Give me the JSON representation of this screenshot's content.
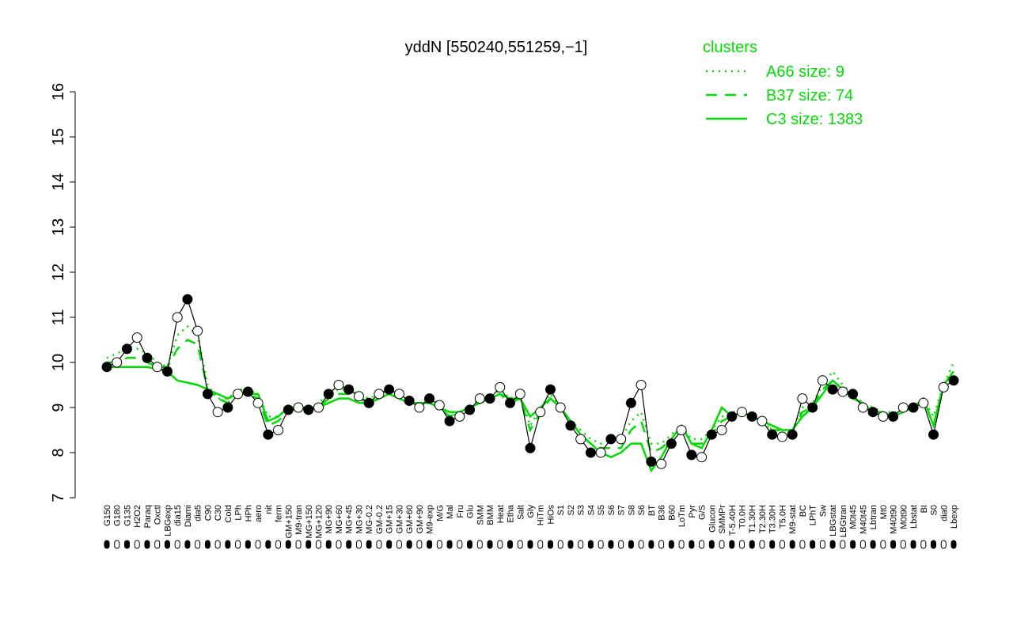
{
  "chart_data": {
    "type": "line",
    "title": "yddN [550240,551259,−1]",
    "legend_title": "clusters",
    "legend_color": "#00dd00",
    "legend_position": "top-right",
    "ylim": [
      7,
      16
    ],
    "yticks": [
      7,
      8,
      9,
      10,
      11,
      12,
      13,
      14,
      15,
      16
    ],
    "categories": [
      "G150",
      "G180",
      "G135",
      "H2O2",
      "Paraq",
      "Oxctl",
      "LBGexp",
      "dia15",
      "Diami",
      "dia5",
      "C90",
      "C30",
      "Cold",
      "LPh",
      "HPh",
      "aero",
      "nit",
      "ferm",
      "GM+150",
      "M9-tran",
      "MG+150",
      "MG+120",
      "MG+90",
      "MG+60",
      "MG+45",
      "MG+30",
      "MG-0.2",
      "GM-0.2",
      "GM+15",
      "GM+30",
      "GM+60",
      "GM+90",
      "M9-exp",
      "M/G",
      "Mal",
      "Fru",
      "Glu",
      "SMM",
      "BMM",
      "Heat",
      "Etha",
      "Salt",
      "Gly",
      "HiTm",
      "HiOs",
      "S1",
      "S2",
      "S3",
      "S4",
      "S5",
      "S6",
      "S7",
      "S8",
      "S6",
      "BT",
      "B36",
      "B60",
      "LoTm",
      "Pyr",
      "G/S",
      "Glucon",
      "SMMPr",
      "T-5.40H",
      "T0.0H",
      "T1.30H",
      "T2.30H",
      "T3.30H",
      "T5.0H",
      "M9-stat",
      "BC",
      "LPhT",
      "Sw",
      "LBGstat",
      "LBGtran",
      "M0t45",
      "M40t45",
      "Lbtran",
      "Mt0",
      "M40t90",
      "M0t90",
      "Lbstat",
      "BI",
      "S0",
      "dia0",
      "Lbexp"
    ],
    "values": [
      9.9,
      10.0,
      10.3,
      10.55,
      10.1,
      9.9,
      9.8,
      11.0,
      11.4,
      10.7,
      9.3,
      8.9,
      9.0,
      9.3,
      9.35,
      9.1,
      8.4,
      8.5,
      8.95,
      9.0,
      8.95,
      9.0,
      9.3,
      9.5,
      9.4,
      9.25,
      9.1,
      9.3,
      9.4,
      9.3,
      9.15,
      9.0,
      9.2,
      9.05,
      8.7,
      8.8,
      8.95,
      9.2,
      9.2,
      9.45,
      9.1,
      9.3,
      8.1,
      8.9,
      9.4,
      9.0,
      8.6,
      8.3,
      8.0,
      8.0,
      8.3,
      8.3,
      9.1,
      9.5,
      7.8,
      7.75,
      8.2,
      8.5,
      7.95,
      7.9,
      8.4,
      8.5,
      8.8,
      8.9,
      8.8,
      8.7,
      8.4,
      8.35,
      8.4,
      9.2,
      9.0,
      9.6,
      9.4,
      9.35,
      9.3,
      9.0,
      8.9,
      8.8,
      8.8,
      9.0,
      9.0,
      9.1,
      8.4,
      9.45,
      9.6
    ],
    "series": [
      {
        "name": "A66 size: 9",
        "color": "#00dd00",
        "dash": "dotted",
        "values": [
          10.1,
          10.2,
          10.3,
          10.3,
          10.2,
          10.0,
          9.9,
          10.6,
          10.8,
          10.6,
          9.5,
          9.2,
          9.2,
          9.4,
          9.4,
          9.3,
          8.8,
          8.8,
          9.0,
          9.0,
          9.0,
          9.1,
          9.3,
          9.4,
          9.4,
          9.3,
          9.2,
          9.3,
          9.4,
          9.3,
          9.2,
          9.1,
          9.2,
          9.1,
          8.8,
          8.9,
          9.0,
          9.2,
          9.2,
          9.4,
          9.2,
          9.3,
          8.6,
          9.0,
          9.3,
          9.0,
          8.7,
          8.5,
          8.3,
          8.2,
          8.3,
          8.3,
          8.7,
          8.9,
          8.2,
          8.2,
          8.4,
          8.6,
          8.3,
          8.3,
          8.5,
          8.8,
          8.9,
          8.9,
          8.8,
          8.7,
          8.5,
          8.5,
          8.5,
          9.0,
          9.1,
          9.5,
          9.8,
          9.5,
          9.3,
          9.1,
          9.0,
          8.9,
          8.9,
          8.9,
          9.0,
          9.2,
          8.8,
          9.5,
          10.0
        ]
      },
      {
        "name": "B37 size: 74",
        "color": "#00dd00",
        "dash": "dashed",
        "values": [
          10.0,
          10.0,
          10.1,
          10.1,
          10.0,
          9.9,
          9.9,
          10.3,
          10.5,
          10.4,
          9.4,
          9.2,
          9.1,
          9.3,
          9.3,
          9.2,
          8.6,
          8.7,
          8.9,
          9.0,
          9.0,
          9.0,
          9.2,
          9.3,
          9.3,
          9.2,
          9.1,
          9.2,
          9.3,
          9.2,
          9.1,
          9.1,
          9.1,
          9.0,
          8.8,
          8.9,
          9.0,
          9.1,
          9.2,
          9.3,
          9.1,
          9.2,
          8.5,
          8.9,
          9.2,
          9.0,
          8.7,
          8.4,
          8.2,
          8.1,
          8.1,
          8.1,
          8.5,
          8.7,
          8.0,
          8.1,
          8.3,
          8.6,
          8.2,
          8.2,
          8.4,
          8.7,
          8.8,
          8.9,
          8.8,
          8.7,
          8.5,
          8.5,
          8.5,
          8.9,
          9.0,
          9.4,
          9.6,
          9.4,
          9.2,
          9.1,
          8.9,
          8.9,
          8.8,
          8.9,
          9.0,
          9.2,
          8.6,
          9.5,
          9.8
        ]
      },
      {
        "name": "C3 size: 1383",
        "color": "#00dd00",
        "dash": "solid",
        "values": [
          9.9,
          9.9,
          9.9,
          9.9,
          9.9,
          9.85,
          9.8,
          9.6,
          9.55,
          9.5,
          9.4,
          9.3,
          9.2,
          9.3,
          9.3,
          9.3,
          8.7,
          8.8,
          9.0,
          9.0,
          9.0,
          9.0,
          9.1,
          9.2,
          9.2,
          9.1,
          9.1,
          9.2,
          9.3,
          9.2,
          9.1,
          9.1,
          9.1,
          9.0,
          8.9,
          8.9,
          9.0,
          9.1,
          9.2,
          9.3,
          9.2,
          9.2,
          8.8,
          9.0,
          9.2,
          9.0,
          8.7,
          8.4,
          8.2,
          8.0,
          7.9,
          8.0,
          8.2,
          8.2,
          7.6,
          7.9,
          8.3,
          8.6,
          8.2,
          8.1,
          8.5,
          9.0,
          8.8,
          8.9,
          8.8,
          8.7,
          8.6,
          8.5,
          8.5,
          8.8,
          9.0,
          9.3,
          9.6,
          9.4,
          9.2,
          9.1,
          8.9,
          8.9,
          8.8,
          8.9,
          9.0,
          9.2,
          8.6,
          9.5,
          9.8
        ]
      }
    ]
  }
}
